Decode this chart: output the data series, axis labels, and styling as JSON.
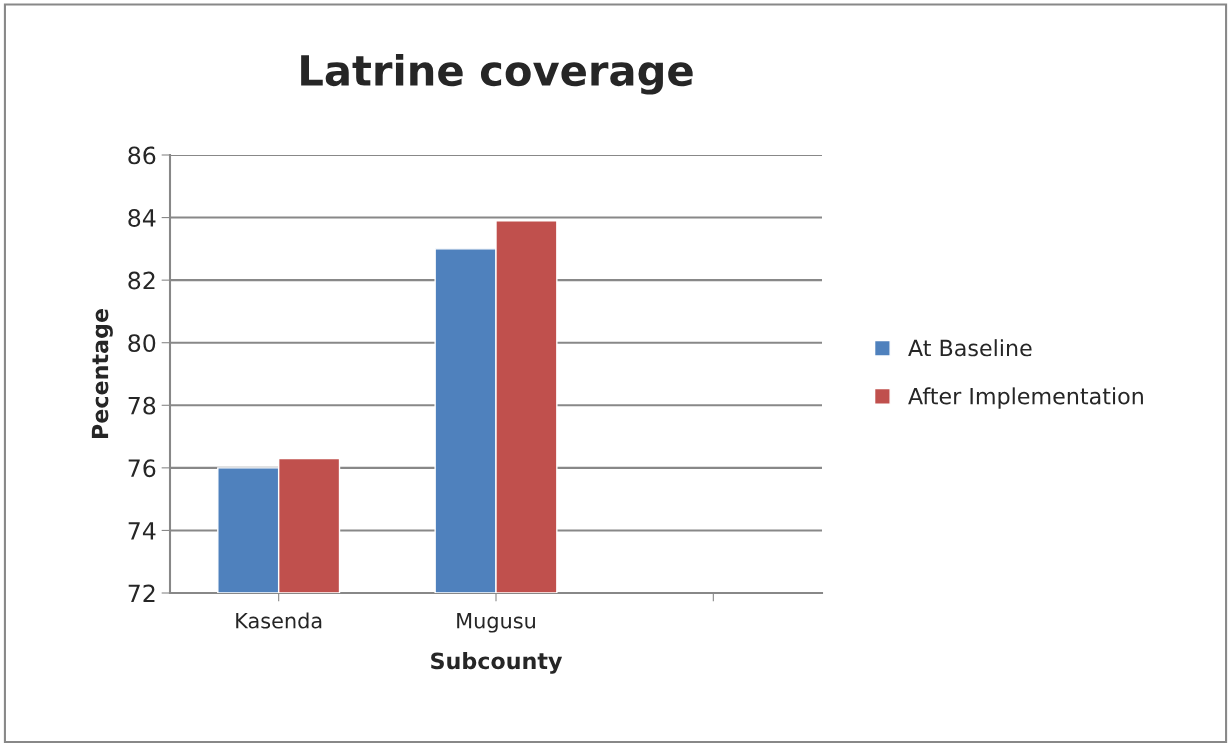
{
  "chart_data": {
    "type": "bar",
    "title": "Latrine coverage",
    "xlabel": "Subcounty",
    "ylabel": "Pecentage",
    "categories": [
      "Kasenda",
      "Mugusu",
      null
    ],
    "series": [
      {
        "name": "At Baseline",
        "color": "#4f81bd",
        "values": [
          76,
          83,
          null
        ]
      },
      {
        "name": "After Implementation",
        "color": "#c0504d",
        "values": [
          76.3,
          83.9,
          null
        ]
      }
    ],
    "ylim": [
      72,
      86
    ],
    "yticks": [
      72,
      74,
      76,
      78,
      80,
      82,
      84,
      86
    ],
    "grid": "y",
    "legend": "right"
  }
}
